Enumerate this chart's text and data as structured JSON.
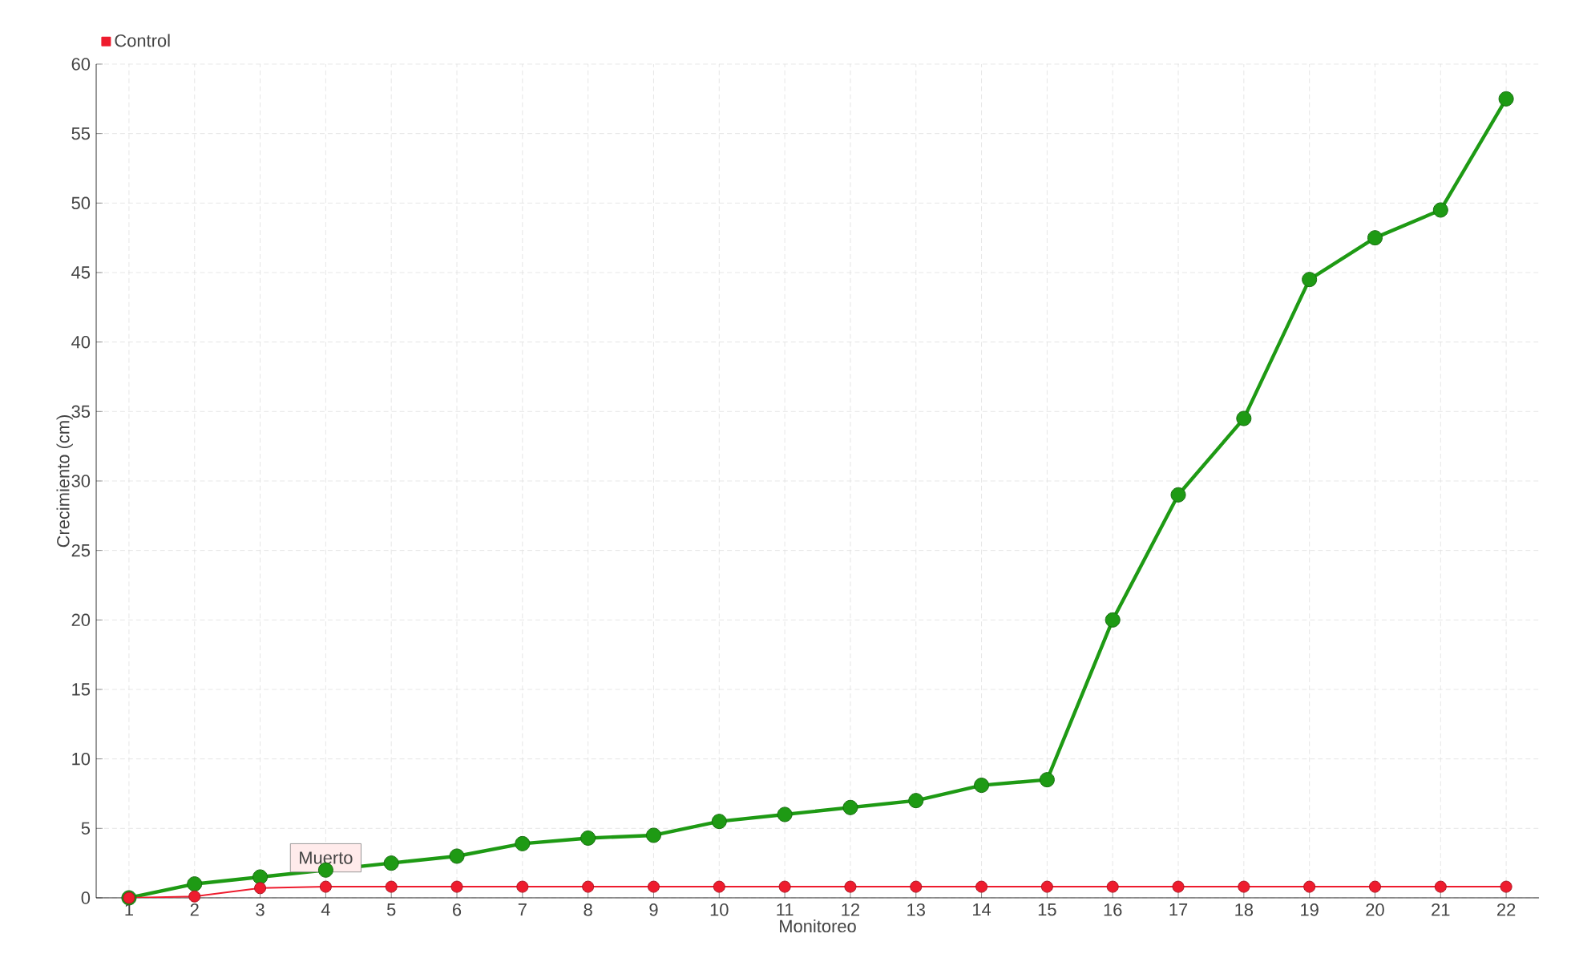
{
  "chart_data": {
    "type": "line",
    "xlabel": "Monitoreo",
    "ylabel": "Crecimiento (cm)",
    "categories": [
      "1",
      "2",
      "3",
      "4",
      "5",
      "6",
      "7",
      "8",
      "9",
      "10",
      "11",
      "12",
      "13",
      "14",
      "15",
      "16",
      "17",
      "18",
      "19",
      "20",
      "21",
      "22"
    ],
    "series": [
      {
        "color": "#1e9a14",
        "values": [
          0,
          1,
          1.5,
          2,
          2.5,
          3,
          3.9,
          4.3,
          4.5,
          5.5,
          6,
          6.5,
          7,
          8.1,
          8.5,
          20,
          29,
          34.5,
          44.5,
          47.5,
          49.5,
          57.5
        ]
      },
      {
        "name": "Control",
        "color": "#ee1c2e",
        "values": [
          0,
          0.1,
          0.7,
          0.8,
          0.8,
          0.8,
          0.8,
          0.8,
          0.8,
          0.8,
          0.8,
          0.8,
          0.8,
          0.8,
          0.8,
          0.8,
          0.8,
          0.8,
          0.8,
          0.8,
          0.8,
          0.8
        ]
      }
    ],
    "ylim": [
      0,
      60
    ],
    "yticks": [
      0,
      5,
      10,
      15,
      20,
      25,
      30,
      35,
      40,
      45,
      50,
      55,
      60
    ],
    "grid": true,
    "legend": "top left",
    "marker": "circle",
    "line_style": "solid",
    "annotations": [
      {
        "text": "Muerto",
        "x": "4",
        "y": 0.8
      }
    ]
  }
}
